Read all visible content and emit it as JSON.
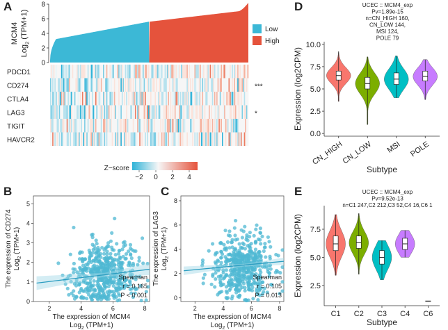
{
  "panels": {
    "A": "A",
    "B": "B",
    "C": "C",
    "D": "D",
    "E": "E"
  },
  "chart_data": [
    {
      "id": "A",
      "type": "area",
      "title": "",
      "ylabel_line1": "MCM4",
      "ylabel_line2": "Log",
      "ylabel_sub": "2",
      "ylabel_line3": " (TPM+1)",
      "ylim": [
        0,
        8
      ],
      "yticks": [
        "0",
        "2",
        "4",
        "6",
        "8"
      ],
      "n_samples": 554,
      "low_fraction": 0.5,
      "low_range": [
        0.3,
        5.6
      ],
      "high_range": [
        5.6,
        8.2
      ],
      "legend": [
        {
          "name": "Low",
          "color": "#3cb8d6"
        },
        {
          "name": "High",
          "color": "#e5533c"
        }
      ],
      "heatmap_rows": [
        "PDCD1",
        "CD274",
        "CTLA4",
        "LAG3",
        "TIGIT",
        "HAVCR2"
      ],
      "heatmap_sig": [
        "",
        "***",
        "",
        "*",
        "",
        ""
      ],
      "zscore_label": "Z−score",
      "zscore_ticks": [
        "−2",
        "0",
        "2",
        "4"
      ]
    },
    {
      "id": "B",
      "type": "scatter",
      "ylabel_line1": "The expression of CD274",
      "ylabel_line2": "Log",
      "ylabel_sub": "2",
      "ylabel_line3": " (TPM+1)",
      "xlabel_line1": "The expression of MCM4",
      "xlabel_line2": "Log",
      "xlabel_sub": "2",
      "xlabel_line3": " (TPM+1)",
      "xlim": [
        1,
        8.3
      ],
      "ylim": [
        0,
        5.4
      ],
      "xticks": [
        "2",
        "4",
        "6",
        "8"
      ],
      "yticks": [
        "0",
        "1",
        "2",
        "3",
        "4",
        "5"
      ],
      "stats": {
        "method": "Spearman",
        "r": "r = 0.165",
        "p": "P < 0.001"
      },
      "fit": {
        "intercept": 0.82,
        "slope": 0.1
      }
    },
    {
      "id": "C",
      "type": "scatter",
      "ylabel_line1": "The expression of LAG3",
      "ylabel_line2": "Log",
      "ylabel_sub": "2",
      "ylabel_line3": " (TPM+1)",
      "xlabel_line1": "The expression of MCM4",
      "xlabel_line2": "Log",
      "xlabel_sub": "2",
      "xlabel_line3": " (TPM+1)",
      "xlim": [
        1,
        8.3
      ],
      "ylim": [
        -0.3,
        8.4
      ],
      "xticks": [
        "2",
        "4",
        "6",
        "8"
      ],
      "yticks": [
        "0",
        "2",
        "4",
        "6",
        "8"
      ],
      "stats": {
        "method": "Spearman",
        "r": "r = 0.105",
        "p": "P = 0.013"
      },
      "fit": {
        "intercept": 2.1,
        "slope": 0.11
      }
    },
    {
      "id": "D",
      "type": "violin",
      "title_lines": [
        "UCEC :: MCM4_exp",
        "Pv=1.89e-15",
        "n=CN_HIGH 160,",
        "CN_LOW 144,",
        "MSI 124,",
        "POLE 79"
      ],
      "ylabel": "Expression (log2CPM)",
      "xlabel": "Subtype",
      "ylim": [
        -0.3,
        10.3
      ],
      "yticks": [
        "0.0",
        "2.5",
        "5.0",
        "7.5",
        "10.0"
      ],
      "categories": [
        "CN_HIGH",
        "CN_LOW",
        "MSI",
        "POLE"
      ],
      "colors": [
        "#f8766d",
        "#7cae00",
        "#00bfc4",
        "#c77cff"
      ],
      "stats": [
        {
          "median": 6.5,
          "q1": 6.0,
          "q3": 7.0,
          "min": 3.6,
          "max": 9.2
        },
        {
          "median": 5.6,
          "q1": 5.0,
          "q3": 6.3,
          "min": 1.0,
          "max": 8.6
        },
        {
          "median": 6.1,
          "q1": 5.5,
          "q3": 6.8,
          "min": 4.0,
          "max": 8.7
        },
        {
          "median": 6.4,
          "q1": 5.9,
          "q3": 7.0,
          "min": 3.8,
          "max": 8.3
        }
      ]
    },
    {
      "id": "E",
      "type": "violin",
      "title_lines": [
        "UCEC :: MCM4_exp",
        "Pv=9.52e-13",
        "n=C1 247,C2 212,C3 52,C4 16,C6 1"
      ],
      "ylabel": "Expression (log2CPM)",
      "xlabel": "Subtype",
      "ylim": [
        0.7,
        9.6
      ],
      "yticks": [
        "2.5",
        "5.0",
        "7.5"
      ],
      "categories": [
        "C1",
        "C2",
        "C3",
        "C4",
        "C6"
      ],
      "colors": [
        "#f8766d",
        "#7cae00",
        "#00bfc4",
        "#c77cff",
        "#f8766d"
      ],
      "stats": [
        {
          "median": 6.2,
          "q1": 5.6,
          "q3": 6.9,
          "min": 3.4,
          "max": 8.8
        },
        {
          "median": 6.3,
          "q1": 5.8,
          "q3": 6.9,
          "min": 3.5,
          "max": 8.9
        },
        {
          "median": 5.0,
          "q1": 4.4,
          "q3": 5.6,
          "min": 3.0,
          "max": 6.5
        },
        {
          "median": 6.2,
          "q1": 5.7,
          "q3": 6.7,
          "min": 5.0,
          "max": 7.4
        },
        {
          "median": 1.1,
          "q1": 1.1,
          "q3": 1.1,
          "min": 1.1,
          "max": 1.1
        }
      ]
    }
  ]
}
